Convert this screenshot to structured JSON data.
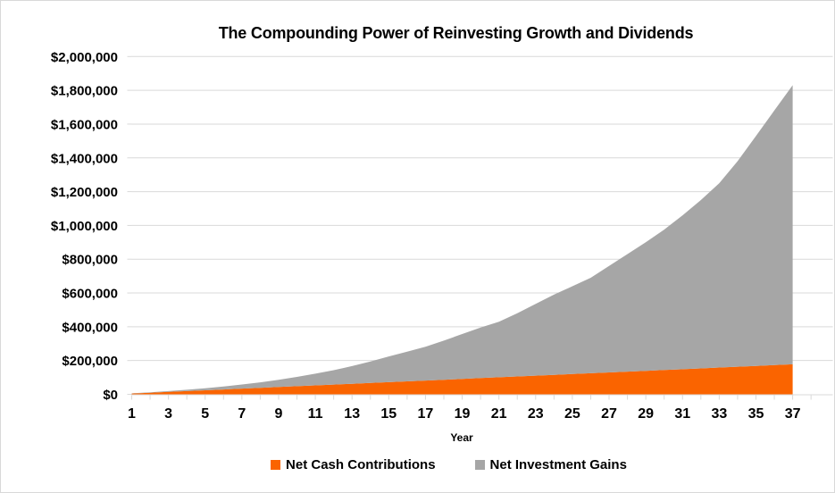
{
  "title": "The Compounding Power of Reinvesting Growth and Dividends",
  "chart_data": {
    "type": "area",
    "stacked": true,
    "title": "The Compounding Power of Reinvesting Growth and Dividends",
    "xlabel": "Year",
    "ylabel": "",
    "grid": "horizontal",
    "legend_position": "bottom",
    "ylim": [
      0,
      2000000
    ],
    "ytick_step": 200000,
    "ytick_labels": [
      "$0",
      "$200,000",
      "$400,000",
      "$600,000",
      "$800,000",
      "$1,000,000",
      "$1,200,000",
      "$1,400,000",
      "$1,600,000",
      "$1,800,000",
      "$2,000,000"
    ],
    "x": [
      1,
      2,
      3,
      4,
      5,
      6,
      7,
      8,
      9,
      10,
      11,
      12,
      13,
      14,
      15,
      16,
      17,
      18,
      19,
      20,
      21,
      22,
      23,
      24,
      25,
      26,
      27,
      28,
      29,
      30,
      31,
      32,
      33,
      34,
      35,
      36,
      37
    ],
    "xticks": [
      1,
      2,
      3,
      4,
      5,
      6,
      7,
      8,
      9,
      10,
      11,
      12,
      13,
      14,
      15,
      16,
      17,
      18,
      19,
      20,
      21,
      22,
      23,
      24,
      25,
      26,
      27,
      28,
      29,
      30,
      31,
      32,
      33,
      34,
      35,
      36,
      37,
      38
    ],
    "xtick_labels_shown": [
      "1",
      "3",
      "5",
      "7",
      "9",
      "11",
      "13",
      "15",
      "17",
      "19",
      "21",
      "23",
      "25",
      "27",
      "29",
      "31",
      "33",
      "35",
      "37"
    ],
    "series": [
      {
        "name": "Net Cash Contributions",
        "color": "#FA6400",
        "values": [
          4800,
          9600,
          14400,
          19200,
          24000,
          28800,
          33600,
          38400,
          43200,
          48000,
          52800,
          57600,
          62400,
          67200,
          72000,
          76800,
          81600,
          86400,
          91200,
          96000,
          100800,
          105600,
          110400,
          115200,
          120000,
          124800,
          129600,
          134400,
          139200,
          144000,
          148800,
          153600,
          158400,
          163200,
          168000,
          172800,
          177600
        ]
      },
      {
        "name": "Net Investment Gains",
        "color": "#A6A6A6",
        "values": [
          1200,
          2400,
          4600,
          7800,
          12000,
          17200,
          24400,
          32600,
          42800,
          55000,
          69200,
          85400,
          104600,
          126800,
          152000,
          175200,
          200400,
          231600,
          265800,
          299000,
          329200,
          374400,
          424600,
          474800,
          520000,
          565200,
          630400,
          695600,
          760800,
          831000,
          911200,
          996400,
          1091600,
          1216800,
          1362000,
          1507200,
          1652400
        ]
      }
    ],
    "colors": {
      "gridline": "#D9D9D9",
      "axis_line": "#D9D9D9",
      "tick": "#D9D9D9",
      "text": "#000000"
    }
  },
  "legend": {
    "items": [
      {
        "label": "Net Cash Contributions",
        "color": "#FA6400"
      },
      {
        "label": "Net Investment Gains",
        "color": "#A6A6A6"
      }
    ]
  }
}
